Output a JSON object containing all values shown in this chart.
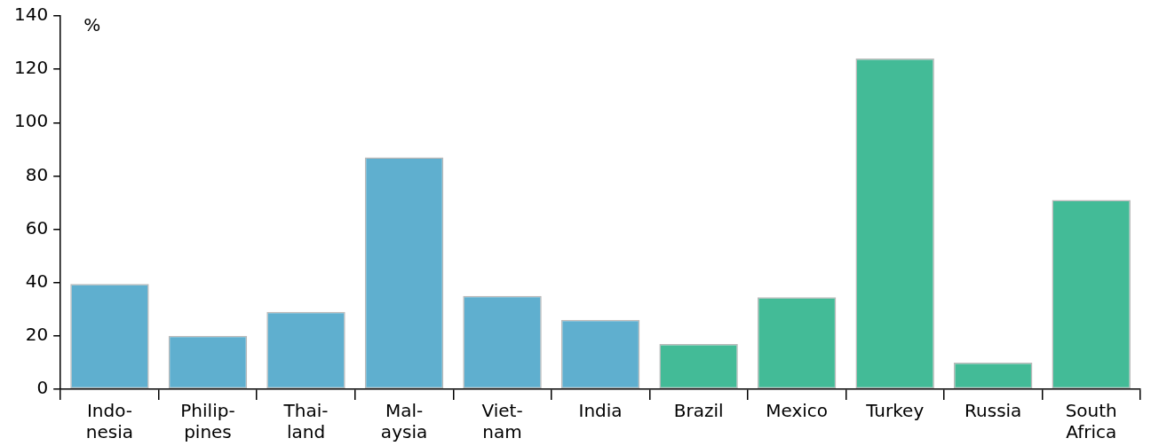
{
  "chart_data": {
    "type": "bar",
    "ylabel": "%",
    "categories": [
      "Indo-\nnesia",
      "Philip-\npines",
      "Thai-\nland",
      "Mal-\naysia",
      "Viet-\nnam",
      "India",
      "Brazil",
      "Mexico",
      "Turkey",
      "Russia",
      "South\nAfrica"
    ],
    "values": [
      39.5,
      20,
      29,
      87,
      35,
      26,
      17,
      34.5,
      124,
      10,
      71
    ],
    "colors": [
      "#5fafcf",
      "#5fafcf",
      "#5fafcf",
      "#5fafcf",
      "#5fafcf",
      "#5fafcf",
      "#43bb97",
      "#43bb97",
      "#43bb97",
      "#43bb97",
      "#43bb97"
    ],
    "ylim": [
      0,
      140
    ],
    "yticks": [
      0,
      20,
      40,
      60,
      80,
      100,
      120,
      140
    ],
    "grid": false,
    "legend": false
  }
}
